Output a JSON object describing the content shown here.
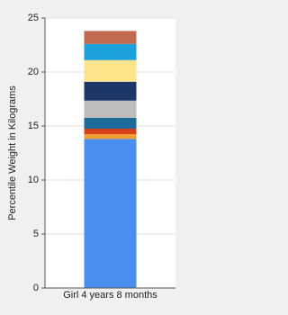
{
  "chart_data": {
    "type": "stacked-bar",
    "y_label": "Percentile Weight in Kilograms",
    "categories": [
      "Girl 4 years 8 months"
    ],
    "series": [
      {
        "color": "#4a8fef",
        "values": [
          13.8
        ]
      },
      {
        "color": "#f0a030",
        "values": [
          0.45
        ]
      },
      {
        "color": "#d8401c",
        "values": [
          0.5
        ]
      },
      {
        "color": "#1e6a9a",
        "values": [
          1.0
        ]
      },
      {
        "color": "#bdbdbd",
        "values": [
          1.6
        ]
      },
      {
        "color": "#1c3767",
        "values": [
          1.75
        ]
      },
      {
        "color": "#fde48a",
        "values": [
          2.0
        ]
      },
      {
        "color": "#1da1dc",
        "values": [
          1.5
        ]
      },
      {
        "color": "#c26a50",
        "values": [
          1.2
        ]
      }
    ],
    "ylim": [
      0,
      25
    ],
    "yticks": [
      0,
      5,
      10,
      15,
      20,
      25
    ],
    "grid": true
  }
}
